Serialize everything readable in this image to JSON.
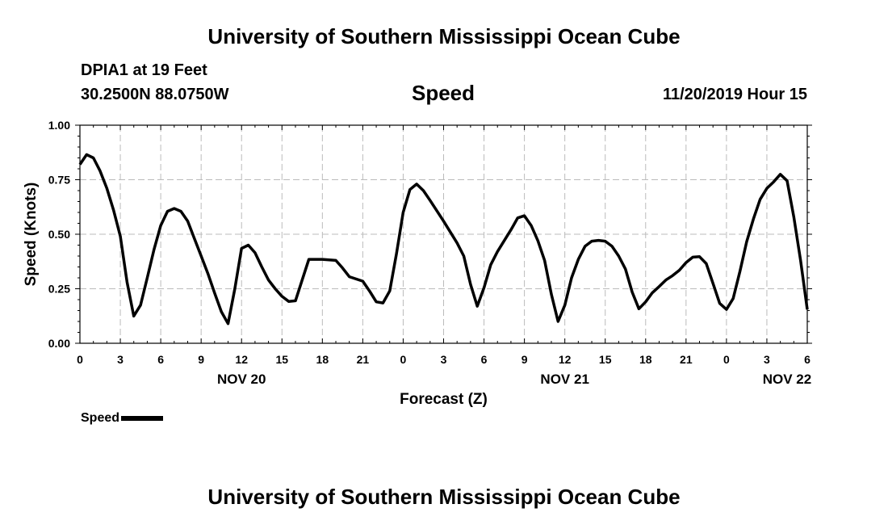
{
  "header": {
    "title": "University of Southern Mississippi Ocean Cube",
    "station": "DPIA1 at 19 Feet",
    "location": "30.2500N 88.0750W",
    "chart_title": "Speed",
    "timestamp": "11/20/2019 Hour 15"
  },
  "footer": {
    "title": "University of Southern Mississippi Ocean Cube"
  },
  "legend": {
    "label": "Speed",
    "color": "#000000"
  },
  "chart_data": {
    "type": "line",
    "title": "Speed",
    "xlabel": "Forecast (Z)",
    "ylabel": "Speed (Knots)",
    "xlim": [
      0,
      54
    ],
    "ylim": [
      0,
      1.0
    ],
    "grid": true,
    "legend_position": "bottom-left",
    "x_ticks": [
      {
        "x": 0,
        "label": "0"
      },
      {
        "x": 3,
        "label": "3"
      },
      {
        "x": 6,
        "label": "6"
      },
      {
        "x": 9,
        "label": "9"
      },
      {
        "x": 12,
        "label": "12"
      },
      {
        "x": 15,
        "label": "15"
      },
      {
        "x": 18,
        "label": "18"
      },
      {
        "x": 21,
        "label": "21"
      },
      {
        "x": 24,
        "label": "0"
      },
      {
        "x": 27,
        "label": "3"
      },
      {
        "x": 30,
        "label": "6"
      },
      {
        "x": 33,
        "label": "9"
      },
      {
        "x": 36,
        "label": "12"
      },
      {
        "x": 39,
        "label": "15"
      },
      {
        "x": 42,
        "label": "18"
      },
      {
        "x": 45,
        "label": "21"
      },
      {
        "x": 48,
        "label": "0"
      },
      {
        "x": 51,
        "label": "3"
      },
      {
        "x": 54,
        "label": "6"
      }
    ],
    "date_labels": [
      {
        "x": 12,
        "label": "NOV 20"
      },
      {
        "x": 36,
        "label": "NOV 21"
      },
      {
        "x": 52.5,
        "label": "NOV 22"
      }
    ],
    "y_ticks": [
      {
        "y": 0.0,
        "label": "0.00"
      },
      {
        "y": 0.25,
        "label": "0.25"
      },
      {
        "y": 0.5,
        "label": "0.50"
      },
      {
        "y": 0.75,
        "label": "0.75"
      },
      {
        "y": 1.0,
        "label": "1.00"
      }
    ],
    "series": [
      {
        "name": "Speed",
        "color": "#000000",
        "points": [
          [
            0,
            0.82
          ],
          [
            0.5,
            0.865
          ],
          [
            1,
            0.85
          ],
          [
            1.5,
            0.79
          ],
          [
            2,
            0.71
          ],
          [
            2.5,
            0.61
          ],
          [
            3,
            0.49
          ],
          [
            3.5,
            0.28
          ],
          [
            4,
            0.125
          ],
          [
            4.5,
            0.175
          ],
          [
            5,
            0.3
          ],
          [
            5.5,
            0.43
          ],
          [
            6,
            0.54
          ],
          [
            6.5,
            0.605
          ],
          [
            7,
            0.618
          ],
          [
            7.5,
            0.605
          ],
          [
            8,
            0.56
          ],
          [
            8.5,
            0.48
          ],
          [
            9,
            0.4
          ],
          [
            9.5,
            0.32
          ],
          [
            10,
            0.23
          ],
          [
            10.5,
            0.145
          ],
          [
            11,
            0.09
          ],
          [
            11.5,
            0.25
          ],
          [
            12,
            0.435
          ],
          [
            12.5,
            0.45
          ],
          [
            13,
            0.415
          ],
          [
            13.5,
            0.35
          ],
          [
            14,
            0.29
          ],
          [
            14.5,
            0.25
          ],
          [
            15,
            0.215
          ],
          [
            15.5,
            0.192
          ],
          [
            16,
            0.195
          ],
          [
            16.5,
            0.29
          ],
          [
            17,
            0.385
          ],
          [
            18,
            0.385
          ],
          [
            19,
            0.38
          ],
          [
            19.5,
            0.345
          ],
          [
            20,
            0.305
          ],
          [
            21,
            0.285
          ],
          [
            21.5,
            0.24
          ],
          [
            22,
            0.19
          ],
          [
            22.5,
            0.185
          ],
          [
            23,
            0.24
          ],
          [
            23.5,
            0.41
          ],
          [
            24,
            0.6
          ],
          [
            24.5,
            0.705
          ],
          [
            25,
            0.73
          ],
          [
            25.5,
            0.7
          ],
          [
            26,
            0.655
          ],
          [
            27,
            0.56
          ],
          [
            28,
            0.46
          ],
          [
            28.5,
            0.4
          ],
          [
            29,
            0.27
          ],
          [
            29.5,
            0.17
          ],
          [
            30,
            0.255
          ],
          [
            30.5,
            0.36
          ],
          [
            31,
            0.42
          ],
          [
            32,
            0.52
          ],
          [
            32.5,
            0.575
          ],
          [
            33,
            0.585
          ],
          [
            33.5,
            0.54
          ],
          [
            34,
            0.47
          ],
          [
            34.5,
            0.38
          ],
          [
            35,
            0.225
          ],
          [
            35.5,
            0.1
          ],
          [
            36,
            0.175
          ],
          [
            36.5,
            0.3
          ],
          [
            37,
            0.385
          ],
          [
            37.5,
            0.445
          ],
          [
            38,
            0.468
          ],
          [
            38.5,
            0.472
          ],
          [
            39,
            0.468
          ],
          [
            39.5,
            0.445
          ],
          [
            40,
            0.4
          ],
          [
            40.5,
            0.34
          ],
          [
            41,
            0.235
          ],
          [
            41.5,
            0.158
          ],
          [
            42,
            0.19
          ],
          [
            42.5,
            0.232
          ],
          [
            43,
            0.26
          ],
          [
            43.5,
            0.29
          ],
          [
            44,
            0.31
          ],
          [
            44.5,
            0.335
          ],
          [
            45,
            0.37
          ],
          [
            45.5,
            0.395
          ],
          [
            46,
            0.397
          ],
          [
            46.5,
            0.365
          ],
          [
            47,
            0.275
          ],
          [
            47.5,
            0.183
          ],
          [
            48,
            0.155
          ],
          [
            48.5,
            0.205
          ],
          [
            49,
            0.33
          ],
          [
            49.5,
            0.465
          ],
          [
            50,
            0.57
          ],
          [
            50.5,
            0.66
          ],
          [
            51,
            0.71
          ],
          [
            51.5,
            0.74
          ],
          [
            52,
            0.775
          ],
          [
            52.5,
            0.745
          ],
          [
            53,
            0.58
          ],
          [
            53.5,
            0.38
          ],
          [
            54,
            0.155
          ]
        ]
      }
    ]
  }
}
